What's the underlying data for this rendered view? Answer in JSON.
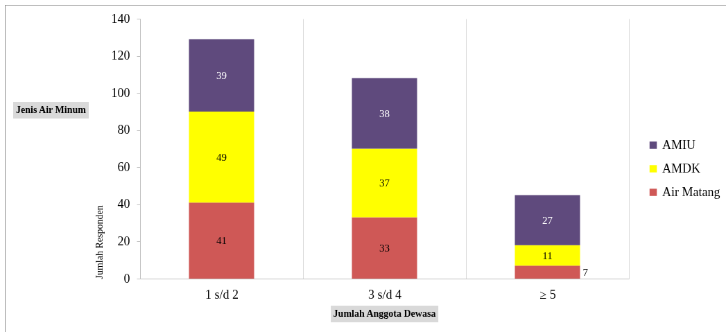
{
  "chart_data": {
    "type": "bar",
    "stacked": true,
    "xlabel": "Jumlah Anggota Dewasa",
    "ylabel": "Jumlah Responden",
    "legend_title": "Jenis Air Minum",
    "categories": [
      "1 s/d 2",
      "3 s/d 4",
      "≥ 5"
    ],
    "series": [
      {
        "name": "Air Matang",
        "color": "#cf5856",
        "values": [
          41,
          33,
          7
        ]
      },
      {
        "name": "AMDK",
        "color": "#ffff00",
        "values": [
          49,
          37,
          11
        ]
      },
      {
        "name": "AMIU",
        "color": "#5f4a7d",
        "values": [
          39,
          38,
          27
        ]
      }
    ],
    "ylim": [
      0,
      140
    ],
    "yticks": [
      0,
      20,
      40,
      60,
      80,
      100,
      120,
      140
    ],
    "grid": "x",
    "legend": "right",
    "data_labels": true
  }
}
